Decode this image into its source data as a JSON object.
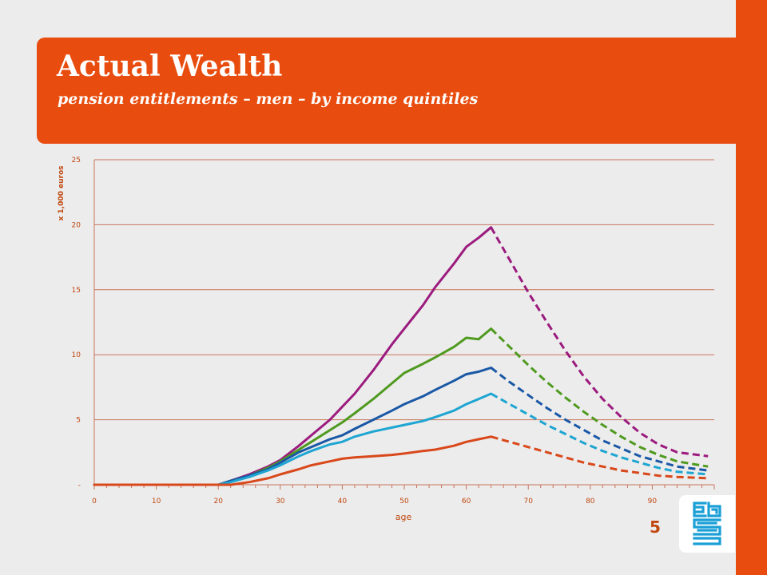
{
  "slide": {
    "title": "Actual Wealth",
    "subtitle": "pension entitlements – men – by income quintiles",
    "page_number": "5",
    "logo_icon": "cbs-logo-icon"
  },
  "colors": {
    "accent": "#e84c0e",
    "background": "#ececec",
    "gridline": "#c8735a",
    "tick_text": "#c0470e"
  },
  "chart_data": {
    "type": "line",
    "xlabel": "age",
    "ylabel": "x 1,000 euros",
    "xlim": [
      0,
      100
    ],
    "ylim": [
      0,
      25
    ],
    "x_ticks": [
      0,
      10,
      20,
      30,
      40,
      50,
      60,
      70,
      80,
      90
    ],
    "x_tick_labels": [
      "0",
      "10",
      "20",
      "30",
      "40",
      "50",
      "60",
      "70",
      "80",
      "90"
    ],
    "y_ticks": [
      0,
      5,
      10,
      15,
      20,
      25
    ],
    "y_tick_labels": [
      "-",
      "5",
      "10",
      "15",
      "20",
      "25"
    ],
    "grid": "horizontal",
    "legend": "none",
    "series": [
      {
        "color": "#9b1b7e",
        "actual": [
          [
            0,
            0
          ],
          [
            20,
            0
          ],
          [
            22,
            0.3
          ],
          [
            25,
            0.8
          ],
          [
            28,
            1.4
          ],
          [
            30,
            1.9
          ],
          [
            33,
            3.0
          ],
          [
            35,
            3.8
          ],
          [
            38,
            5.0
          ],
          [
            40,
            6.0
          ],
          [
            42,
            7.0
          ],
          [
            45,
            8.8
          ],
          [
            48,
            10.8
          ],
          [
            50,
            12.0
          ],
          [
            53,
            13.8
          ],
          [
            55,
            15.2
          ],
          [
            58,
            17.0
          ],
          [
            60,
            18.3
          ],
          [
            62,
            19.0
          ],
          [
            64,
            19.8
          ]
        ],
        "projected": [
          [
            64,
            19.8
          ],
          [
            67,
            17.3
          ],
          [
            70,
            14.8
          ],
          [
            73,
            12.5
          ],
          [
            76,
            10.3
          ],
          [
            79,
            8.3
          ],
          [
            82,
            6.6
          ],
          [
            85,
            5.2
          ],
          [
            88,
            4.0
          ],
          [
            91,
            3.1
          ],
          [
            94,
            2.5
          ],
          [
            99,
            2.2
          ]
        ]
      },
      {
        "color": "#4f9a1f",
        "actual": [
          [
            0,
            0
          ],
          [
            20,
            0
          ],
          [
            22,
            0.3
          ],
          [
            25,
            0.7
          ],
          [
            28,
            1.3
          ],
          [
            30,
            1.8
          ],
          [
            33,
            2.7
          ],
          [
            35,
            3.3
          ],
          [
            38,
            4.2
          ],
          [
            40,
            4.8
          ],
          [
            42,
            5.5
          ],
          [
            45,
            6.6
          ],
          [
            48,
            7.8
          ],
          [
            50,
            8.6
          ],
          [
            53,
            9.3
          ],
          [
            55,
            9.8
          ],
          [
            58,
            10.6
          ],
          [
            60,
            11.3
          ],
          [
            62,
            11.2
          ],
          [
            64,
            12.0
          ]
        ],
        "projected": [
          [
            64,
            12.0
          ],
          [
            67,
            10.6
          ],
          [
            70,
            9.2
          ],
          [
            73,
            7.9
          ],
          [
            76,
            6.7
          ],
          [
            79,
            5.6
          ],
          [
            82,
            4.6
          ],
          [
            85,
            3.7
          ],
          [
            88,
            2.9
          ],
          [
            91,
            2.3
          ],
          [
            94,
            1.8
          ],
          [
            99,
            1.4
          ]
        ]
      },
      {
        "color": "#1a58a6",
        "actual": [
          [
            0,
            0
          ],
          [
            20,
            0
          ],
          [
            22,
            0.3
          ],
          [
            25,
            0.7
          ],
          [
            28,
            1.2
          ],
          [
            30,
            1.7
          ],
          [
            33,
            2.5
          ],
          [
            35,
            2.9
          ],
          [
            38,
            3.5
          ],
          [
            40,
            3.8
          ],
          [
            42,
            4.3
          ],
          [
            45,
            5.0
          ],
          [
            48,
            5.7
          ],
          [
            50,
            6.2
          ],
          [
            53,
            6.8
          ],
          [
            55,
            7.3
          ],
          [
            58,
            8.0
          ],
          [
            60,
            8.5
          ],
          [
            62,
            8.7
          ],
          [
            64,
            9.0
          ]
        ],
        "projected": [
          [
            64,
            9.0
          ],
          [
            67,
            7.9
          ],
          [
            70,
            6.9
          ],
          [
            73,
            5.9
          ],
          [
            76,
            5.0
          ],
          [
            79,
            4.2
          ],
          [
            82,
            3.4
          ],
          [
            85,
            2.8
          ],
          [
            88,
            2.2
          ],
          [
            91,
            1.8
          ],
          [
            94,
            1.4
          ],
          [
            99,
            1.1
          ]
        ]
      },
      {
        "color": "#1ea5d2",
        "actual": [
          [
            0,
            0
          ],
          [
            20,
            0
          ],
          [
            22,
            0.2
          ],
          [
            25,
            0.6
          ],
          [
            28,
            1.1
          ],
          [
            30,
            1.5
          ],
          [
            33,
            2.2
          ],
          [
            35,
            2.6
          ],
          [
            38,
            3.1
          ],
          [
            40,
            3.3
          ],
          [
            42,
            3.7
          ],
          [
            45,
            4.1
          ],
          [
            48,
            4.4
          ],
          [
            50,
            4.6
          ],
          [
            53,
            4.9
          ],
          [
            55,
            5.2
          ],
          [
            58,
            5.7
          ],
          [
            60,
            6.2
          ],
          [
            62,
            6.6
          ],
          [
            64,
            7.0
          ]
        ],
        "projected": [
          [
            64,
            7.0
          ],
          [
            67,
            6.2
          ],
          [
            70,
            5.4
          ],
          [
            73,
            4.6
          ],
          [
            76,
            3.9
          ],
          [
            79,
            3.2
          ],
          [
            82,
            2.6
          ],
          [
            85,
            2.1
          ],
          [
            88,
            1.7
          ],
          [
            91,
            1.3
          ],
          [
            94,
            1.0
          ],
          [
            99,
            0.8
          ]
        ]
      },
      {
        "color": "#d9481a",
        "actual": [
          [
            0,
            0
          ],
          [
            22,
            0
          ],
          [
            25,
            0.2
          ],
          [
            28,
            0.5
          ],
          [
            30,
            0.8
          ],
          [
            33,
            1.2
          ],
          [
            35,
            1.5
          ],
          [
            38,
            1.8
          ],
          [
            40,
            2.0
          ],
          [
            42,
            2.1
          ],
          [
            45,
            2.2
          ],
          [
            48,
            2.3
          ],
          [
            50,
            2.4
          ],
          [
            53,
            2.6
          ],
          [
            55,
            2.7
          ],
          [
            58,
            3.0
          ],
          [
            60,
            3.3
          ],
          [
            62,
            3.5
          ],
          [
            64,
            3.7
          ]
        ],
        "projected": [
          [
            64,
            3.7
          ],
          [
            67,
            3.3
          ],
          [
            70,
            2.9
          ],
          [
            73,
            2.5
          ],
          [
            76,
            2.1
          ],
          [
            79,
            1.7
          ],
          [
            82,
            1.4
          ],
          [
            85,
            1.1
          ],
          [
            88,
            0.9
          ],
          [
            91,
            0.7
          ],
          [
            94,
            0.6
          ],
          [
            99,
            0.5
          ]
        ]
      }
    ]
  }
}
